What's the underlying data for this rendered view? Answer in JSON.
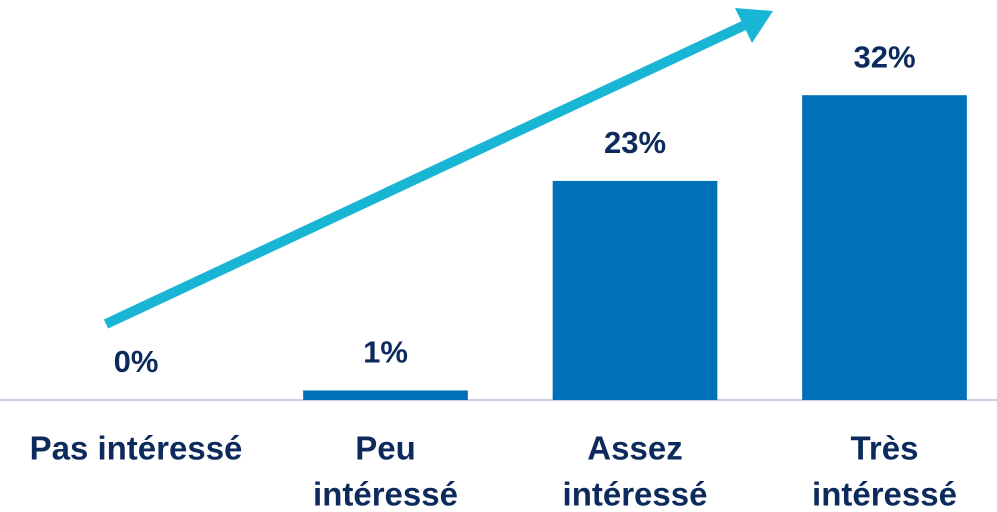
{
  "chart_data": {
    "type": "bar",
    "categories": [
      [
        "Pas intéressé"
      ],
      [
        "Peu",
        "intéressé"
      ],
      [
        "Assez",
        "intéressé"
      ],
      [
        "Très",
        "intéressé"
      ]
    ],
    "values": [
      0,
      1,
      23,
      32
    ],
    "value_labels": [
      "0%",
      "1%",
      "23%",
      "32%"
    ],
    "color": "#0070b8",
    "ylim": [
      0,
      40
    ]
  }
}
